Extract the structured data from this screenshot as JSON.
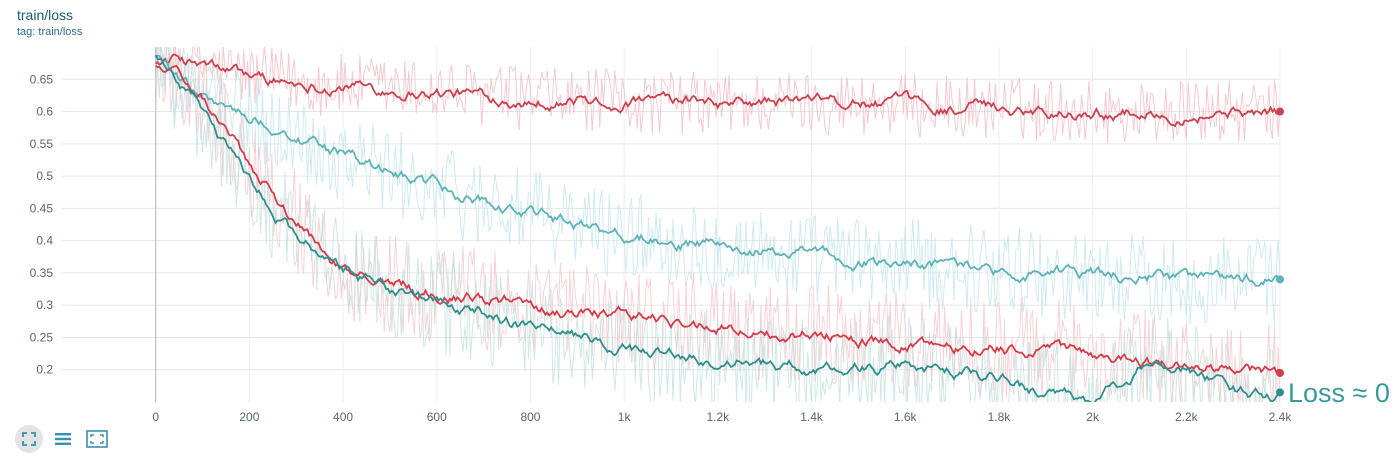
{
  "header": {
    "title": "train/loss",
    "subtitle": "tag: train/loss"
  },
  "toolbar": {
    "icons": [
      "fit-domain-icon",
      "toggle-log-icon",
      "expand-icon"
    ]
  },
  "chart_data": {
    "type": "line",
    "xlim": [
      -200,
      2400
    ],
    "ylim": [
      0.15,
      0.7
    ],
    "x_ticks": [
      0,
      200,
      400,
      600,
      800,
      1000,
      1200,
      1400,
      1600,
      1800,
      2000,
      2200,
      2400
    ],
    "x_tick_labels": [
      "0",
      "200",
      "400",
      "600",
      "800",
      "1k",
      "1.2k",
      "1.4k",
      "1.6k",
      "1.8k",
      "2k",
      "2.2k",
      "2.4k"
    ],
    "y_ticks": [
      0.2,
      0.25,
      0.3,
      0.35,
      0.4,
      0.45,
      0.5,
      0.55,
      0.6,
      0.65
    ],
    "y_tick_labels": [
      "0.2",
      "0.25",
      "0.3",
      "0.35",
      "0.4",
      "0.45",
      "0.5",
      "0.55",
      "0.6",
      "0.65"
    ],
    "grid": true,
    "annotation": "Loss ≈ 0",
    "series": [
      {
        "color": "#c9424f",
        "raw_color": "#f0b8c0",
        "noise": 0.05,
        "x": [
          0,
          50,
          100,
          200,
          300,
          400,
          600,
          800,
          1000,
          1200,
          1400,
          1600,
          1800,
          2000,
          2200,
          2400
        ],
        "values": [
          0.68,
          0.68,
          0.67,
          0.655,
          0.645,
          0.64,
          0.63,
          0.62,
          0.615,
          0.612,
          0.615,
          0.61,
          0.605,
          0.6,
          0.598,
          0.6
        ]
      },
      {
        "color": "#5fb3b8",
        "raw_color": "#bfe4ec",
        "noise": 0.07,
        "x": [
          0,
          50,
          100,
          200,
          300,
          400,
          600,
          800,
          1000,
          1200,
          1400,
          1600,
          1800,
          2000,
          2200,
          2400
        ],
        "values": [
          0.69,
          0.65,
          0.63,
          0.59,
          0.56,
          0.53,
          0.48,
          0.44,
          0.41,
          0.39,
          0.375,
          0.365,
          0.355,
          0.345,
          0.34,
          0.34
        ]
      },
      {
        "color": "#d43c4a",
        "raw_color": "#f4c4ca",
        "noise": 0.08,
        "x": [
          0,
          50,
          100,
          200,
          300,
          400,
          600,
          800,
          1000,
          1200,
          1400,
          1600,
          1800,
          2000,
          2200,
          2400
        ],
        "values": [
          0.67,
          0.65,
          0.62,
          0.52,
          0.43,
          0.35,
          0.32,
          0.3,
          0.285,
          0.265,
          0.255,
          0.24,
          0.235,
          0.225,
          0.205,
          0.195
        ]
      },
      {
        "color": "#2f8f8c",
        "raw_color": "#bfe0dc",
        "noise": 0.08,
        "x": [
          0,
          50,
          100,
          200,
          300,
          400,
          600,
          800,
          1000,
          1200,
          1400,
          1600,
          1800,
          2000,
          2100,
          2200,
          2300,
          2400
        ],
        "values": [
          0.69,
          0.64,
          0.6,
          0.49,
          0.41,
          0.35,
          0.305,
          0.265,
          0.23,
          0.215,
          0.2,
          0.205,
          0.185,
          0.145,
          0.2,
          0.205,
          0.165,
          0.165
        ]
      }
    ]
  }
}
